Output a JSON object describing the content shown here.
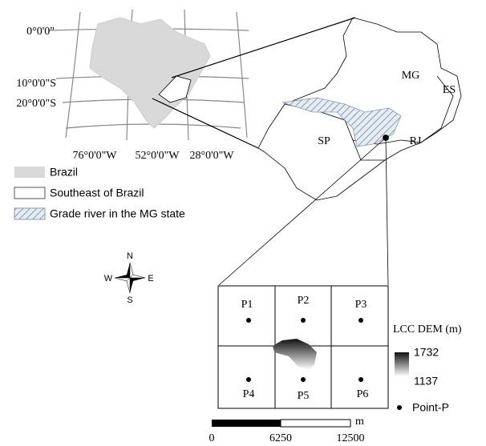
{
  "inset": {
    "lat_labels": [
      "0°0'0\"",
      "10°0'0\"S",
      "20°0'0\"S"
    ],
    "lon_labels": [
      "76°0'0\"W",
      "52°0'0\"W",
      "28°0'0\"W"
    ]
  },
  "legend": {
    "items": [
      "Brazil",
      "Southeast of Brazil",
      "Grade river in the MG state"
    ]
  },
  "states": [
    "MG",
    "ES",
    "SP",
    "RJ"
  ],
  "compass": {
    "n": "N",
    "s": "S",
    "e": "E",
    "w": "W"
  },
  "grid": {
    "cells": [
      "P1",
      "P2",
      "P3",
      "P4",
      "P5",
      "P6"
    ]
  },
  "dem_legend": {
    "title": "LCC DEM (m)",
    "max": "1732",
    "min": "1137",
    "point": "Point-P"
  },
  "scale_bar": {
    "labels": [
      "0",
      "6250",
      "12500"
    ],
    "unit": "m"
  }
}
